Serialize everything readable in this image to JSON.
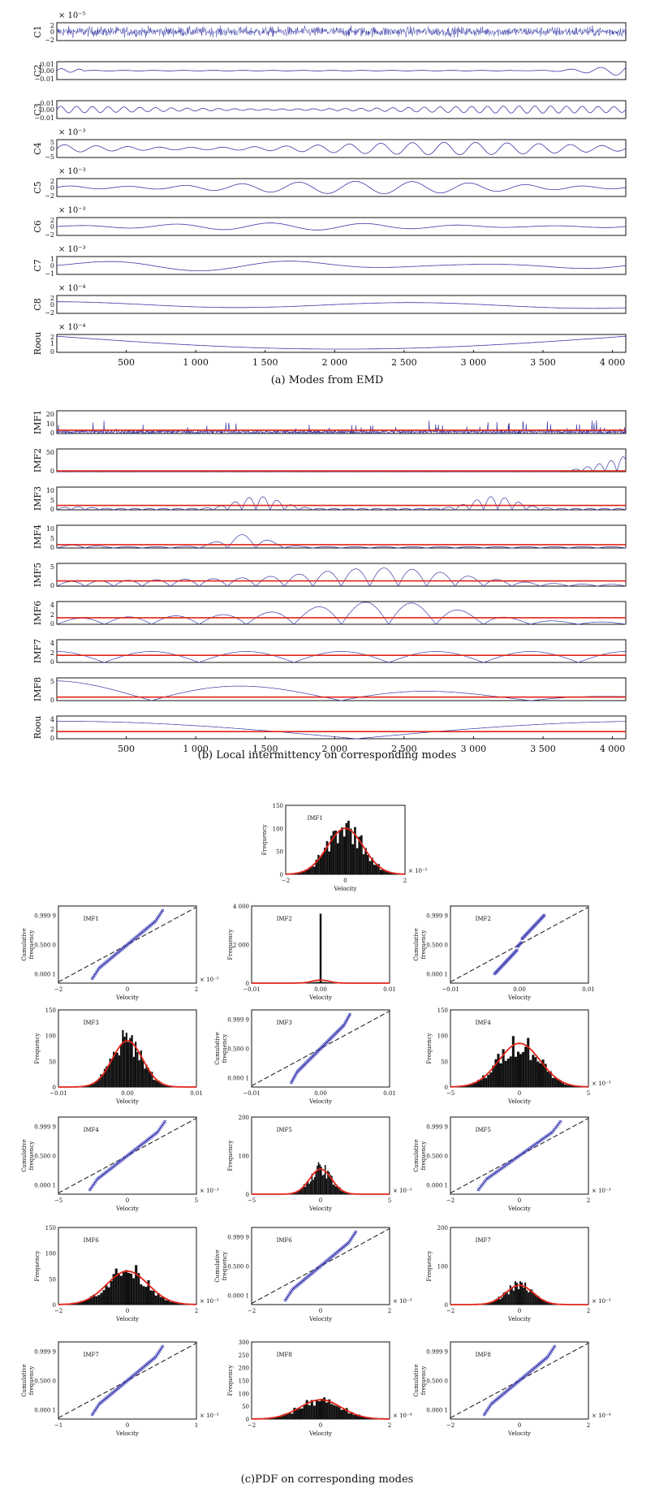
{
  "captions": {
    "a": "(a) Modes from EMD",
    "b": "(b) Local intermittency on corresponding modes",
    "c": "(c)PDF on corresponding modes"
  },
  "colors": {
    "signal": "#3a3aa8",
    "threshold": "#e02418",
    "bars": "#111111",
    "fit": "#e02418",
    "points": "#3c3cb4"
  },
  "chart_data": [
    {
      "type": "line",
      "id": "modes-from-emd",
      "x_ticks": [
        "500",
        "1 000",
        "1 500",
        "2 000",
        "2 500",
        "3 000",
        "3 500",
        "4 000"
      ],
      "x_tick_values": [
        500,
        1000,
        1500,
        2000,
        2500,
        3000,
        3500,
        4000
      ],
      "xlim": [
        0,
        4096
      ],
      "panels": [
        {
          "ylabel": "C1",
          "exp": "× 10⁻⁵",
          "yticks": [
            "2",
            "0",
            "−2"
          ],
          "shape": "noise",
          "amp": 0.85
        },
        {
          "ylabel": "C2",
          "exp": "",
          "yticks": [
            "0.01",
            "0.00",
            "−0.01"
          ],
          "shape": "C2",
          "amp": 0.6
        },
        {
          "ylabel": "C3",
          "exp": "",
          "yticks": [
            "0.01",
            "0.00",
            "−0.01"
          ],
          "shape": "osc",
          "periods": 36,
          "amp": 0.4
        },
        {
          "ylabel": "C4",
          "exp": "× 10⁻³",
          "yticks": [
            "5",
            "0",
            "−5"
          ],
          "shape": "osc",
          "periods": 18,
          "amp": 0.7
        },
        {
          "ylabel": "C5",
          "exp": "× 10⁻³",
          "yticks": [
            "2",
            "0",
            "−2"
          ],
          "shape": "osc",
          "periods": 10,
          "amp": 0.7
        },
        {
          "ylabel": "C6",
          "exp": "× 10⁻³",
          "yticks": [
            "2",
            "0",
            "−2"
          ],
          "shape": "osc",
          "periods": 6,
          "amp": 0.4
        },
        {
          "ylabel": "C7",
          "exp": "× 10⁻³",
          "yticks": [
            "1",
            "0",
            "−1"
          ],
          "shape": "osc",
          "periods": 3,
          "amp": 0.6
        },
        {
          "ylabel": "C8",
          "exp": "× 10⁻⁴",
          "yticks": [
            "2",
            "0",
            "−2"
          ],
          "shape": "slow",
          "amp": 0.5
        },
        {
          "ylabel": "Roou",
          "exp": "× 10⁻⁴",
          "yticks": [
            "2",
            "1",
            "0"
          ],
          "shape": "trend",
          "amp": 0.8
        }
      ]
    },
    {
      "type": "line",
      "id": "local-intermittency",
      "x_ticks": [
        "500",
        "1 000",
        "1 500",
        "2 000",
        "2 500",
        "3 000",
        "3 500",
        "4 000"
      ],
      "x_tick_values": [
        500,
        1000,
        1500,
        2000,
        2500,
        3000,
        3500,
        4000
      ],
      "xlim": [
        0,
        4096
      ],
      "panels": [
        {
          "ylabel": "IMF1",
          "yticks": [
            "20",
            "10",
            "0"
          ],
          "ymax": 20,
          "threshold": 3,
          "shape": "spiky"
        },
        {
          "ylabel": "IMF2",
          "yticks": [
            "50",
            "0"
          ],
          "ymax": 55,
          "threshold": 2,
          "shape": "burst_end"
        },
        {
          "ylabel": "IMF3",
          "yticks": [
            "10",
            "5",
            "0"
          ],
          "ymax": 10,
          "threshold": 2,
          "shape": "bursts",
          "centers": [
            1450,
            3150
          ],
          "periods": 40
        },
        {
          "ylabel": "IMF4",
          "yticks": [
            "10",
            "5",
            "0"
          ],
          "ymax": 10,
          "threshold": 1.5,
          "shape": "bursts",
          "centers": [
            1350
          ],
          "periods": 20
        },
        {
          "ylabel": "IMF5",
          "yticks": [
            "5",
            "0"
          ],
          "ymax": 5,
          "threshold": 1.2,
          "shape": "bump",
          "periods": 10
        },
        {
          "ylabel": "IMF6",
          "yticks": [
            "4",
            "2",
            "0"
          ],
          "ymax": 4,
          "threshold": 1.2,
          "shape": "bump",
          "periods": 6
        },
        {
          "ylabel": "IMF7",
          "yticks": [
            "4",
            "2",
            "0"
          ],
          "ymax": 4,
          "threshold": 1.3,
          "shape": "abs",
          "periods": 3
        },
        {
          "ylabel": "IMF8",
          "yticks": [
            "5",
            "0"
          ],
          "ymax": 5,
          "threshold": 0.8,
          "shape": "abs",
          "periods": 1.5
        },
        {
          "ylabel": "Roou",
          "yticks": [
            "4",
            "2",
            "0"
          ],
          "ymax": 4,
          "threshold": 1.3,
          "shape": "trendabs"
        }
      ]
    },
    {
      "type": "bar",
      "id": "pdf-imf1",
      "label": "IMF1",
      "xlabel": "Velocity",
      "ylabel": "Frequency",
      "xlim": [
        -2,
        2
      ],
      "ylim": [
        0,
        150
      ],
      "xticks": [
        "−2",
        "0",
        "2"
      ],
      "yticks": [
        "0",
        "50",
        "100",
        "150"
      ],
      "exp": "× 10⁻⁵",
      "fit_peak": 100,
      "fit_sigma": 0.6
    },
    {
      "type": "grid",
      "id": "pdf-and-probability-plots",
      "cells": [
        {
          "kind": "prob",
          "label": "IMF1",
          "xlim": [
            -2,
            2
          ],
          "xticks": [
            "−2",
            "0",
            "2"
          ],
          "exp": "× 10⁻⁵",
          "spread": 0.6
        },
        {
          "kind": "hist",
          "label": "IMF2",
          "xlim": [
            -0.01,
            0.01
          ],
          "xticks": [
            "−0.01",
            "0.00",
            "0.01"
          ],
          "ylim": [
            0,
            4000
          ],
          "yticks": [
            "0",
            "2 000",
            "4 000"
          ],
          "exp": "",
          "spike": true,
          "fit_peak": 160,
          "fit_sigma": 0.0012
        },
        {
          "kind": "prob",
          "label": "IMF2",
          "xlim": [
            -0.01,
            0.01
          ],
          "xticks": [
            "−0.01",
            "0.00",
            "0.01"
          ],
          "exp": "",
          "spread": 0.003,
          "heavy": true
        },
        {
          "kind": "hist",
          "label": "IMF3",
          "xlim": [
            -0.01,
            0.01
          ],
          "xticks": [
            "−0.01",
            "0.00",
            "0.01"
          ],
          "ylim": [
            0,
            150
          ],
          "yticks": [
            "0",
            "50",
            "100",
            "150"
          ],
          "exp": "",
          "fit_peak": 90,
          "fit_sigma": 0.0022
        },
        {
          "kind": "prob",
          "label": "IMF3",
          "xlim": [
            -0.01,
            0.01
          ],
          "xticks": [
            "−0.01",
            "0.00",
            "0.01"
          ],
          "exp": "",
          "spread": 0.0025
        },
        {
          "kind": "hist",
          "label": "IMF4",
          "xlim": [
            -5,
            5
          ],
          "xticks": [
            "−5",
            "0",
            "5"
          ],
          "ylim": [
            0,
            150
          ],
          "yticks": [
            "0",
            "50",
            "100",
            "150"
          ],
          "exp": "× 10⁻³",
          "fit_peak": 85,
          "fit_sigma": 1.5
        },
        {
          "kind": "prob",
          "label": "IMF4",
          "xlim": [
            -5,
            5
          ],
          "xticks": [
            "−5",
            "0",
            "5"
          ],
          "exp": "× 10⁻³",
          "spread": 1.6
        },
        {
          "kind": "hist",
          "label": "IMF5",
          "xlim": [
            -5,
            5
          ],
          "xticks": [
            "−5",
            "0",
            "5"
          ],
          "ylim": [
            0,
            200
          ],
          "yticks": [
            "0",
            "100",
            "200"
          ],
          "exp": "× 10⁻³",
          "fit_peak": 65,
          "fit_sigma": 0.8
        },
        {
          "kind": "prob",
          "label": "IMF5",
          "xlim": [
            -2,
            2
          ],
          "xticks": [
            "−2",
            "0",
            "2"
          ],
          "exp": "× 10⁻³",
          "spread": 0.7
        },
        {
          "kind": "hist",
          "label": "IMF6",
          "xlim": [
            -2,
            2
          ],
          "xticks": [
            "−2",
            "0",
            "2"
          ],
          "ylim": [
            0,
            150
          ],
          "yticks": [
            "0",
            "50",
            "100",
            "150"
          ],
          "exp": "× 10⁻³",
          "fit_peak": 65,
          "fit_sigma": 0.6
        },
        {
          "kind": "prob",
          "label": "IMF6",
          "xlim": [
            -2,
            2
          ],
          "xticks": [
            "−2",
            "0",
            "2"
          ],
          "exp": "× 10⁻³",
          "spread": 0.6
        },
        {
          "kind": "hist",
          "label": "IMF7",
          "xlim": [
            -2,
            2
          ],
          "xticks": [
            "−2",
            "0",
            "2"
          ],
          "ylim": [
            0,
            200
          ],
          "yticks": [
            "0",
            "100",
            "200"
          ],
          "exp": "× 10⁻³",
          "fit_peak": 50,
          "fit_sigma": 0.4
        },
        {
          "kind": "prob",
          "label": "IMF7",
          "xlim": [
            -1,
            1
          ],
          "xticks": [
            "−1",
            "0",
            "1"
          ],
          "exp": "× 10⁻³",
          "spread": 0.3
        },
        {
          "kind": "hist",
          "label": "IMF8",
          "xlim": [
            -2,
            2
          ],
          "xticks": [
            "−2",
            "0",
            "2"
          ],
          "ylim": [
            0,
            300
          ],
          "yticks": [
            "0",
            "50",
            "100",
            "150",
            "200",
            "250",
            "300"
          ],
          "exp": "× 10⁻⁴",
          "fit_peak": 75,
          "fit_sigma": 0.6
        },
        {
          "kind": "prob",
          "label": "IMF8",
          "xlim": [
            -2,
            2
          ],
          "xticks": [
            "−2",
            "0",
            "2"
          ],
          "exp": "× 10⁻⁴",
          "spread": 0.6
        }
      ],
      "hist_xlabel": "Velocity",
      "hist_ylabel": "Frequency",
      "prob_xlabel": "Velocity",
      "prob_ylabel": [
        "Cumulative",
        "frequency"
      ],
      "prob_yticks": [
        "0.999 9",
        "0.500 0",
        "0.000 1"
      ]
    }
  ]
}
